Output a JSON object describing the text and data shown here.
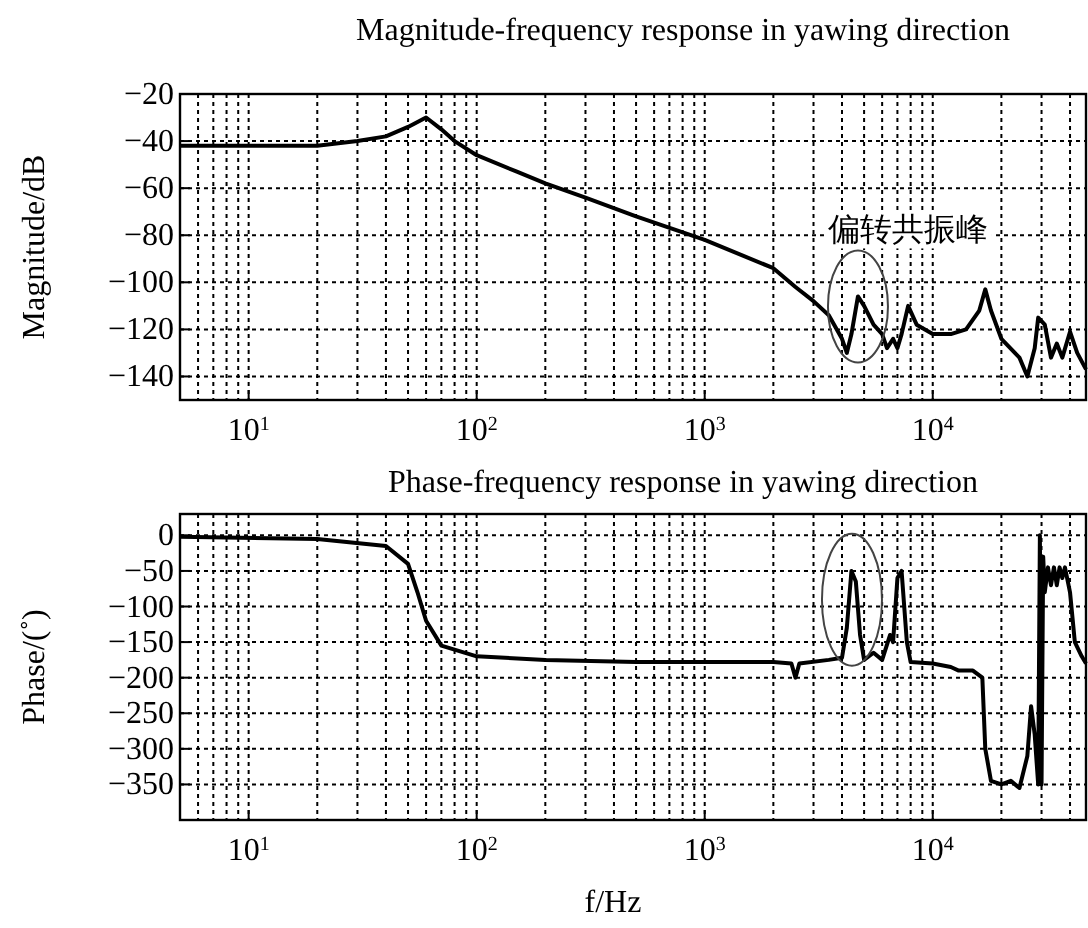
{
  "chart_data": [
    {
      "type": "line",
      "title": "Magnitude-frequency response in yawing direction",
      "ylabel": "Magnitude/dB",
      "log": "x",
      "grid": true,
      "line_style": "solid",
      "xlim": [
        5,
        47000
      ],
      "ylim": [
        -150,
        -20
      ],
      "xticks": [
        {
          "value": 10,
          "label": "10$^{1}$"
        },
        {
          "value": 100,
          "label": "10$^{2}$"
        },
        {
          "value": 1000,
          "label": "10$^{3}$"
        },
        {
          "value": 10000,
          "label": "10$^{4}$"
        }
      ],
      "yticks": [
        -20,
        -40,
        -60,
        -80,
        -100,
        -120,
        -140
      ],
      "annotations": [
        {
          "text": "偏转共振峰",
          "x": 4700,
          "y": -106
        }
      ],
      "series": [
        {
          "color": "#000000",
          "x": [
            5,
            10,
            20,
            30,
            40,
            50,
            60,
            70,
            80,
            100,
            150,
            200,
            300,
            500,
            1000,
            2000,
            2500,
            3000,
            3500,
            4000,
            4200,
            4400,
            4700,
            5000,
            5500,
            6000,
            6300,
            6700,
            7000,
            7300,
            7800,
            8500,
            10000,
            12000,
            14000,
            16000,
            17000,
            18000,
            20000,
            24000,
            26000,
            28000,
            29000,
            31000,
            33000,
            35000,
            37000,
            40000,
            43000,
            47000
          ],
          "values": [
            -42,
            -42,
            -42,
            -40,
            -38,
            -34,
            -30,
            -35,
            -40,
            -46,
            -53,
            -58,
            -64,
            -72,
            -82,
            -94,
            -102,
            -108,
            -114,
            -124,
            -130,
            -122,
            -106,
            -110,
            -118,
            -122,
            -128,
            -124,
            -128,
            -122,
            -110,
            -118,
            -122,
            -122,
            -120,
            -112,
            -103,
            -112,
            -124,
            -132,
            -140,
            -128,
            -115,
            -118,
            -132,
            -126,
            -132,
            -121,
            -130,
            -137
          ]
        }
      ]
    },
    {
      "type": "line",
      "title": "Phase-frequency response in yawing direction",
      "xlabel": "f/Hz",
      "ylabel": "Phase/(˚)",
      "log": "x",
      "grid": true,
      "line_style": "solid",
      "xlim": [
        5,
        47000
      ],
      "ylim": [
        -400,
        30
      ],
      "xticks": [
        {
          "value": 10,
          "label": "10$^{1}$"
        },
        {
          "value": 100,
          "label": "10$^{2}$"
        },
        {
          "value": 1000,
          "label": "10$^{3}$"
        },
        {
          "value": 10000,
          "label": "10$^{4}$"
        }
      ],
      "yticks": [
        0,
        -50,
        -100,
        -150,
        -200,
        -250,
        -300,
        -350
      ],
      "series": [
        {
          "color": "#000000",
          "x": [
            5,
            20,
            40,
            50,
            55,
            60,
            70,
            100,
            200,
            500,
            1000,
            2000,
            2400,
            2500,
            2600,
            3500,
            4000,
            4200,
            4400,
            4600,
            4800,
            5000,
            5500,
            6000,
            6500,
            6700,
            7000,
            7300,
            7700,
            8000,
            10000,
            12000,
            13000,
            15000,
            16500,
            17000,
            18000,
            20000,
            22000,
            24000,
            26000,
            27000,
            28000,
            29000,
            29500,
            30000,
            30500,
            31000,
            32000,
            33000,
            34000,
            35000,
            36000,
            37000,
            38000,
            40000,
            42000,
            45000,
            47000
          ],
          "values": [
            -2,
            -5,
            -15,
            -40,
            -80,
            -120,
            -155,
            -170,
            -175,
            -178,
            -178,
            -178,
            -180,
            -200,
            -180,
            -175,
            -172,
            -130,
            -50,
            -65,
            -140,
            -175,
            -165,
            -175,
            -140,
            -150,
            -60,
            -50,
            -150,
            -178,
            -180,
            -185,
            -190,
            -190,
            -200,
            -300,
            -345,
            -350,
            -345,
            -355,
            -310,
            -240,
            -280,
            -350,
            0,
            -350,
            -30,
            -80,
            -45,
            -70,
            -45,
            -70,
            -45,
            -60,
            -45,
            -80,
            -150,
            -170,
            -180
          ]
        }
      ]
    }
  ]
}
